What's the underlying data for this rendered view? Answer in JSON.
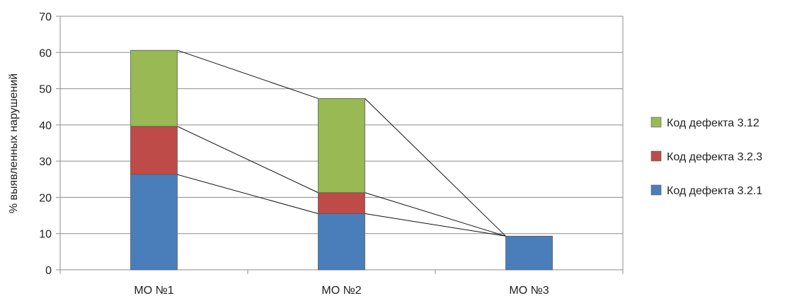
{
  "chart_data": {
    "type": "bar",
    "stacked": true,
    "ylabel": "% выявленных нарушений",
    "ylim": [
      0,
      70
    ],
    "yticks": [
      0,
      10,
      20,
      30,
      40,
      50,
      60,
      70
    ],
    "grid": true,
    "legend_position": "right",
    "connector_lines": true,
    "categories": [
      "МО №1",
      "МО №2",
      "МО №3"
    ],
    "series": [
      {
        "name": "Код дефекта 3.2.1",
        "color": "#4a7ebb",
        "values": [
          26.3,
          15.5,
          9.3
        ]
      },
      {
        "name": "Код дефекта 3.2.3",
        "color": "#be4b48",
        "values": [
          13.3,
          5.8,
          0
        ]
      },
      {
        "name": "Код дефекта 3.12",
        "color": "#98b954",
        "values": [
          21.0,
          26.0,
          0
        ]
      }
    ]
  }
}
